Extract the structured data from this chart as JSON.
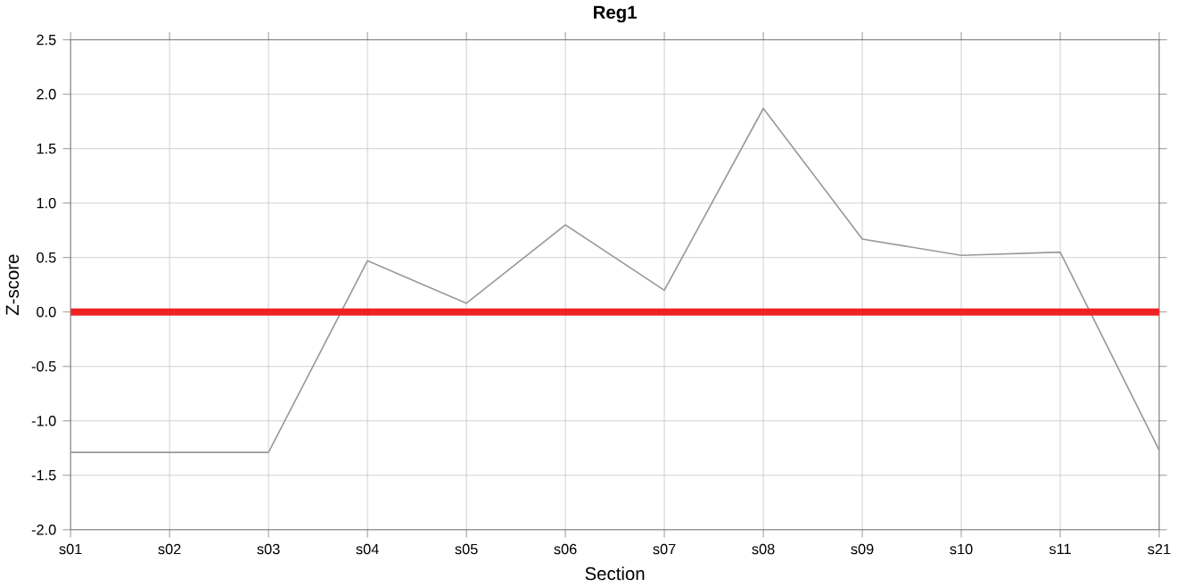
{
  "chart_data": {
    "type": "line",
    "title": "Reg1",
    "xlabel": "Section",
    "ylabel": "Z-score",
    "categories": [
      "s01",
      "s02",
      "s03",
      "s04",
      "s05",
      "s06",
      "s07",
      "s08",
      "s09",
      "s10",
      "s11",
      "s21"
    ],
    "series": [
      {
        "color": "#999999",
        "values": [
          -1.29,
          -1.29,
          -1.29,
          0.47,
          0.08,
          0.8,
          0.2,
          1.87,
          0.67,
          0.52,
          0.55,
          -1.27
        ]
      }
    ],
    "ylim": [
      -2.0,
      2.5
    ],
    "yticks": [
      {
        "value": -2,
        "label": "-2.0"
      },
      {
        "value": -1.5,
        "label": "-1.5"
      },
      {
        "value": -1,
        "label": "-1.0"
      },
      {
        "value": -0.5,
        "label": "-0.5"
      },
      {
        "value": 0,
        "label": "0.0"
      },
      {
        "value": 0.5,
        "label": "0.5"
      },
      {
        "value": 1,
        "label": "1.0"
      },
      {
        "value": 1.5,
        "label": "1.5"
      },
      {
        "value": 2,
        "label": "2.0"
      },
      {
        "value": 2.5,
        "label": "2.5"
      }
    ],
    "ref_lines": [
      {
        "axis": "y",
        "value": 0,
        "color": "#ee2222"
      }
    ],
    "grid": true,
    "marker": "none",
    "line_style": "solid"
  }
}
